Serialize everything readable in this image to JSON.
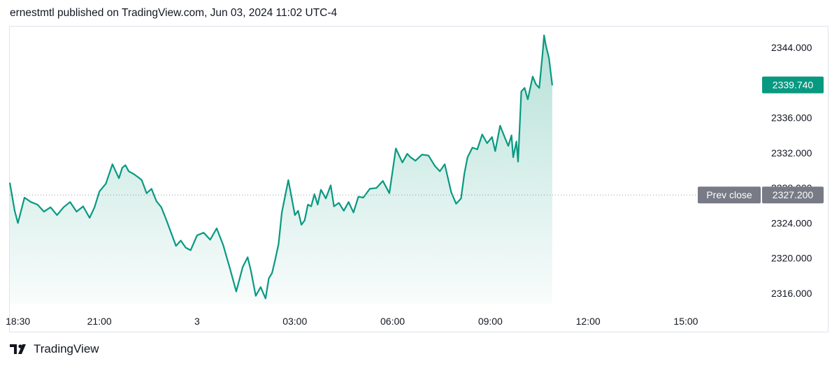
{
  "header": {
    "text": "ernestmtl published on TradingView.com, Jun 03, 2024 11:02 UTC-4"
  },
  "footer": {
    "brand": "TradingView",
    "logo_icon": "tradingview-logo-icon"
  },
  "colors": {
    "line": "#089981",
    "fill_top": "#b2dfd6",
    "last_price_badge": "#089981",
    "prev_close_badge": "#787b86",
    "grid": "#e0e3eb"
  },
  "chart_data": {
    "type": "area",
    "title": "",
    "y_axis_position": "right",
    "ylim": [
      2314.8,
      2346.4
    ],
    "y_ticks": [
      "2316.000",
      "2320.000",
      "2324.000",
      "2328.000",
      "2332.000",
      "2336.000",
      "2344.000"
    ],
    "x_ticks": [
      "18:30",
      "21:00",
      "3",
      "03:00",
      "06:00",
      "09:00",
      "12:00",
      "15:00"
    ],
    "x_tick_hours": [
      18.5,
      21,
      24,
      27,
      30,
      33,
      36,
      39
    ],
    "x_range_hours": [
      18.25,
      41.1
    ],
    "last_price": "2339.740",
    "prev_close_label": "Prev close",
    "prev_close_value": "2327.200",
    "prev_close": 2327.2,
    "series": [
      {
        "x_hours": [
          18.25,
          18.4,
          18.5,
          18.7,
          18.9,
          19.1,
          19.3,
          19.5,
          19.7,
          19.9,
          20.1,
          20.3,
          20.5,
          20.7,
          20.85,
          21.0,
          21.2,
          21.4,
          21.6,
          21.7,
          21.8,
          21.9,
          22.05,
          22.2,
          22.3,
          22.45,
          22.6,
          22.75,
          22.9,
          23.05,
          23.2,
          23.35,
          23.5,
          23.65,
          23.8,
          24.0,
          24.2,
          24.4,
          24.6,
          24.8,
          25.0,
          25.2,
          25.4,
          25.55,
          25.65,
          25.8,
          25.95,
          26.1,
          26.2,
          26.3,
          26.4,
          26.5,
          26.6,
          26.8,
          27.0,
          27.1,
          27.2,
          27.3,
          27.4,
          27.5,
          27.6,
          27.7,
          27.8,
          27.95,
          28.1,
          28.2,
          28.35,
          28.5,
          28.65,
          28.8,
          28.95,
          29.1,
          29.3,
          29.5,
          29.7,
          29.9,
          30.1,
          30.3,
          30.45,
          30.55,
          30.7,
          30.9,
          31.1,
          31.3,
          31.45,
          31.6,
          31.8,
          31.95,
          32.1,
          32.2,
          32.3,
          32.45,
          32.6,
          32.75,
          32.9,
          33.05,
          33.15,
          33.3,
          33.45,
          33.55,
          33.65,
          33.7,
          33.8,
          33.85,
          33.95,
          34.05,
          34.15,
          34.3,
          34.4,
          34.5,
          34.6,
          34.65,
          34.7,
          34.8,
          34.9
        ],
        "values": [
          2328.6,
          2325.4,
          2324.0,
          2326.9,
          2326.4,
          2326.1,
          2325.3,
          2325.8,
          2324.9,
          2325.8,
          2326.4,
          2325.3,
          2325.9,
          2324.6,
          2325.8,
          2327.6,
          2328.5,
          2330.7,
          2329.1,
          2330.3,
          2330.6,
          2329.9,
          2329.6,
          2329.2,
          2328.9,
          2327.4,
          2327.9,
          2326.5,
          2325.8,
          2324.4,
          2322.9,
          2321.4,
          2322.0,
          2321.2,
          2320.9,
          2322.6,
          2322.9,
          2322.1,
          2323.4,
          2321.5,
          2318.9,
          2316.2,
          2319.0,
          2320.1,
          2318.6,
          2315.7,
          2316.7,
          2315.4,
          2317.7,
          2318.3,
          2319.9,
          2321.6,
          2325.2,
          2328.9,
          2324.9,
          2325.4,
          2323.8,
          2324.3,
          2326.1,
          2325.9,
          2327.3,
          2326.1,
          2327.8,
          2326.8,
          2328.3,
          2325.9,
          2326.3,
          2325.4,
          2326.4,
          2325.2,
          2327.0,
          2326.9,
          2327.9,
          2328.0,
          2328.8,
          2327.4,
          2332.5,
          2330.9,
          2331.9,
          2331.5,
          2331.1,
          2331.8,
          2331.7,
          2330.5,
          2329.9,
          2330.7,
          2327.5,
          2326.2,
          2326.8,
          2329.6,
          2331.5,
          2332.6,
          2332.4,
          2334.1,
          2333.1,
          2333.8,
          2332.2,
          2335.1,
          2333.7,
          2332.8,
          2334.0,
          2331.5,
          2333.3,
          2331.0,
          2339.0,
          2339.4,
          2338.1,
          2340.7,
          2339.8,
          2339.4,
          2343.2,
          2345.4,
          2344.3,
          2342.8,
          2339.7
        ]
      }
    ]
  }
}
